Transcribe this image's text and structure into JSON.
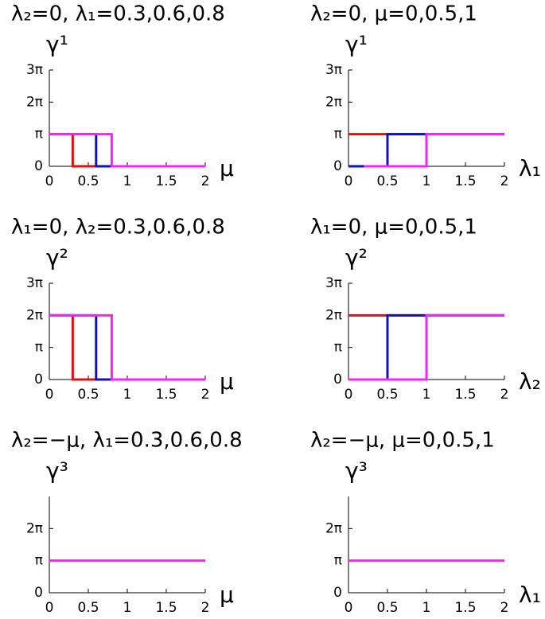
{
  "chart_data": [
    {
      "type": "line",
      "title": "λ₂=0, λ₁=0.3,0.6,0.8",
      "y_label": "γ¹",
      "x_label": "μ",
      "xlim": [
        0,
        2
      ],
      "xticks": [
        0,
        0.5,
        1,
        1.5,
        2
      ],
      "ylim": [
        0,
        9.4248
      ],
      "yticks": [
        0,
        {
          "value": 3.1416,
          "label": "π"
        },
        {
          "value": 6.2832,
          "label": "2π"
        },
        {
          "value": 9.4248,
          "label": "3π"
        }
      ],
      "series": [
        {
          "color": "#e01010",
          "x": [
            0,
            0.3,
            0.3,
            2
          ],
          "values": [
            3.1416,
            3.1416,
            0,
            0
          ]
        },
        {
          "color": "#1010c8",
          "x": [
            0,
            0.6,
            0.6,
            2
          ],
          "values": [
            3.1416,
            3.1416,
            0,
            0
          ]
        },
        {
          "color": "#ff20ff",
          "x": [
            0,
            0.8,
            0.8,
            2
          ],
          "values": [
            3.1416,
            3.1416,
            0,
            0
          ]
        }
      ]
    },
    {
      "type": "line",
      "title": "λ₂=0, μ=0,0.5,1",
      "y_label": "γ¹",
      "x_label": "λ₁",
      "xlim": [
        0,
        2
      ],
      "xticks": [
        0,
        0.5,
        1,
        1.5,
        2
      ],
      "ylim": [
        0,
        9.4248
      ],
      "yticks": [
        0,
        {
          "value": 3.1416,
          "label": "π"
        },
        {
          "value": 6.2832,
          "label": "2π"
        },
        {
          "value": 9.4248,
          "label": "3π"
        }
      ],
      "series": [
        {
          "color": "#e01010",
          "x": [
            0,
            2
          ],
          "values": [
            3.1416,
            3.1416
          ]
        },
        {
          "color": "#1010c8",
          "x": [
            0,
            0.5,
            0.5,
            2
          ],
          "values": [
            0,
            0,
            3.1416,
            3.1416
          ]
        },
        {
          "color": "#ff20ff",
          "x": [
            0.2,
            1,
            1,
            2
          ],
          "values": [
            0,
            0,
            3.1416,
            3.1416
          ]
        }
      ]
    },
    {
      "type": "line",
      "title": "λ₁=0, λ₂=0.3,0.6,0.8",
      "y_label": "γ²",
      "x_label": "μ",
      "xlim": [
        0,
        2
      ],
      "xticks": [
        0,
        0.5,
        1,
        1.5,
        2
      ],
      "ylim": [
        0,
        9.4248
      ],
      "yticks": [
        0,
        {
          "value": 3.1416,
          "label": "π"
        },
        {
          "value": 6.2832,
          "label": "2π"
        },
        {
          "value": 9.4248,
          "label": "3π"
        }
      ],
      "series": [
        {
          "color": "#e01010",
          "x": [
            0,
            0.3,
            0.3,
            2
          ],
          "values": [
            6.2832,
            6.2832,
            0,
            0
          ]
        },
        {
          "color": "#1010c8",
          "x": [
            0,
            0.6,
            0.6,
            2
          ],
          "values": [
            6.2832,
            6.2832,
            0,
            0
          ]
        },
        {
          "color": "#ff20ff",
          "x": [
            0,
            0.8,
            0.8,
            2
          ],
          "values": [
            6.2832,
            6.2832,
            0,
            0
          ]
        }
      ]
    },
    {
      "type": "line",
      "title": "λ₁=0, μ=0,0.5,1",
      "y_label": "γ²",
      "x_label": "λ₂",
      "xlim": [
        0,
        2
      ],
      "xticks": [
        0,
        0.5,
        1,
        1.5,
        2
      ],
      "ylim": [
        0,
        9.4248
      ],
      "yticks": [
        0,
        {
          "value": 3.1416,
          "label": "π"
        },
        {
          "value": 6.2832,
          "label": "2π"
        },
        {
          "value": 9.4248,
          "label": "3π"
        }
      ],
      "series": [
        {
          "color": "#e01010",
          "x": [
            0,
            2
          ],
          "values": [
            6.2832,
            6.2832
          ]
        },
        {
          "color": "#1010c8",
          "x": [
            0,
            0.5,
            0.5,
            2
          ],
          "values": [
            0,
            0,
            6.2832,
            6.2832
          ]
        },
        {
          "color": "#ff20ff",
          "x": [
            0,
            1,
            1,
            2
          ],
          "values": [
            0,
            0,
            6.2832,
            6.2832
          ]
        }
      ]
    },
    {
      "type": "line",
      "title": "λ₂=−μ, λ₁=0.3,0.6,0.8",
      "y_label": "γ³",
      "x_label": "μ",
      "xlim": [
        0,
        2
      ],
      "xticks": [
        0,
        0.5,
        1,
        1.5,
        2
      ],
      "ylim": [
        0,
        9.4248
      ],
      "yticks": [
        0,
        {
          "value": 3.1416,
          "label": "π"
        },
        {
          "value": 6.2832,
          "label": "2π"
        }
      ],
      "series": [
        {
          "color": "#ff20ff",
          "x": [
            0,
            2
          ],
          "values": [
            3.1416,
            3.1416
          ]
        }
      ]
    },
    {
      "type": "line",
      "title": "λ₂=−μ, μ=0,0.5,1",
      "y_label": "γ³",
      "x_label": "λ₁",
      "xlim": [
        0,
        2
      ],
      "xticks": [
        0,
        0.5,
        1,
        1.5,
        2
      ],
      "ylim": [
        0,
        9.4248
      ],
      "yticks": [
        0,
        {
          "value": 3.1416,
          "label": "π"
        },
        {
          "value": 6.2832,
          "label": "2π"
        }
      ],
      "series": [
        {
          "color": "#ff20ff",
          "x": [
            0,
            2
          ],
          "values": [
            3.1416,
            3.1416
          ]
        }
      ]
    }
  ]
}
